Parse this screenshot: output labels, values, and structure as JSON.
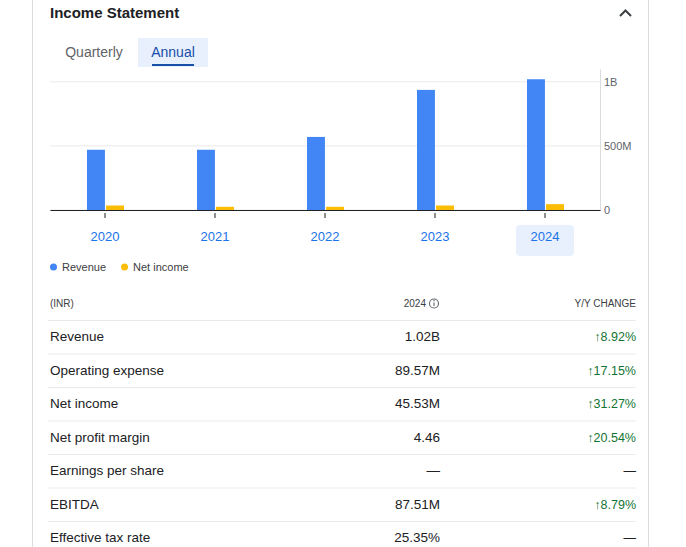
{
  "header": {
    "title": "Income Statement",
    "tabs": [
      "Quarterly",
      "Annual"
    ]
  },
  "chart_data": {
    "type": "bar",
    "categories": [
      "2020",
      "2021",
      "2022",
      "2023",
      "2024"
    ],
    "series": [
      {
        "name": "Revenue",
        "color": "#4285f4",
        "values": [
          470000000,
          470000000,
          570000000,
          937000000,
          1020000000
        ]
      },
      {
        "name": "Net income",
        "color": "#fbbc04",
        "values": [
          35000000,
          25000000,
          25000000,
          35000000,
          45530000
        ]
      }
    ],
    "ylim": [
      0,
      1100000000
    ],
    "yticks": [
      0,
      {
        "value": 500000000,
        "label": "500M"
      },
      {
        "value": 1000000000,
        "label": "1B"
      }
    ],
    "grid": true,
    "legend": "bottom"
  },
  "table": {
    "columns": [
      "(INR)",
      "2024",
      "Y/Y CHANGE"
    ],
    "rows": [
      [
        "Revenue",
        "1.02B",
        "↑8.92%"
      ],
      [
        "Operating expense",
        "89.57M",
        "↑17.15%"
      ],
      [
        "Net income",
        "45.53M",
        "↑31.27%"
      ],
      [
        "Net profit margin",
        "4.46",
        "↑20.54%"
      ],
      [
        "Earnings per share",
        "—",
        "—"
      ],
      [
        "EBITDA",
        "87.51M",
        "↑8.79%"
      ],
      [
        "Effective tax rate",
        "25.35%",
        "—"
      ]
    ]
  }
}
